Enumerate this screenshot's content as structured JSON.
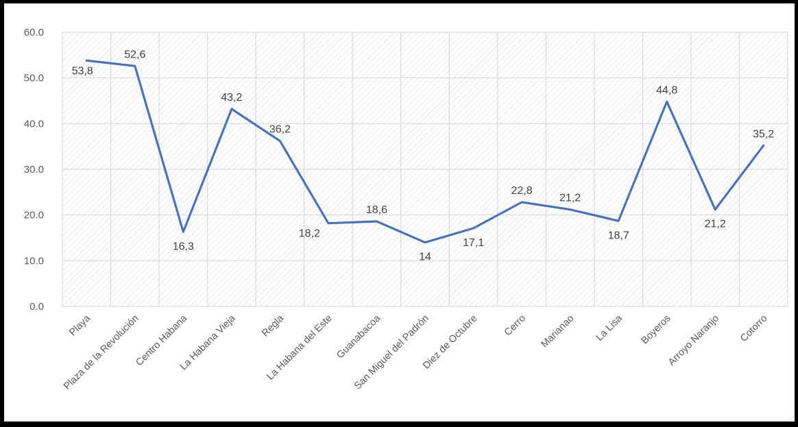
{
  "chart_data": {
    "type": "line",
    "title": "",
    "xlabel": "",
    "ylabel": "",
    "categories": [
      "Playa",
      "Plaza de la Revolución",
      "Centro Habana",
      "La Habana Vieja",
      "Regla",
      "La Habana del Este",
      "Guanabacoa",
      "San Miguel del Padrón",
      "Diez de Octubre",
      "Cerro",
      "Marianao",
      "La Lisa",
      "Boyeros",
      "Arroyo Naranjo",
      "Cotorro"
    ],
    "values": [
      53.8,
      52.6,
      16.3,
      43.2,
      36.2,
      18.2,
      18.6,
      14,
      17.1,
      22.8,
      21.2,
      18.7,
      44.8,
      21.2,
      35.2
    ],
    "data_labels": [
      "53,8",
      "52,6",
      "16,3",
      "43,2",
      "36,2",
      "18,2",
      "18,6",
      "14",
      "17,1",
      "22,8",
      "21,2",
      "18,7",
      "44,8",
      "21,2",
      "35,2"
    ],
    "label_positions": [
      "below",
      "above",
      "below",
      "above",
      "above",
      "left",
      "above",
      "below",
      "below",
      "above",
      "above",
      "below",
      "above",
      "below",
      "above"
    ],
    "yticks": [
      "0.0",
      "10.0",
      "20.0",
      "30.0",
      "40.0",
      "50.0",
      "60.0"
    ],
    "ylim": [
      0,
      60
    ],
    "grid": true,
    "plot_area_pattern": "diagonal-hatch",
    "line_color": "#4472c4",
    "grid_color": "#d9d9d9",
    "hatch_color": "#dcdcdc"
  }
}
